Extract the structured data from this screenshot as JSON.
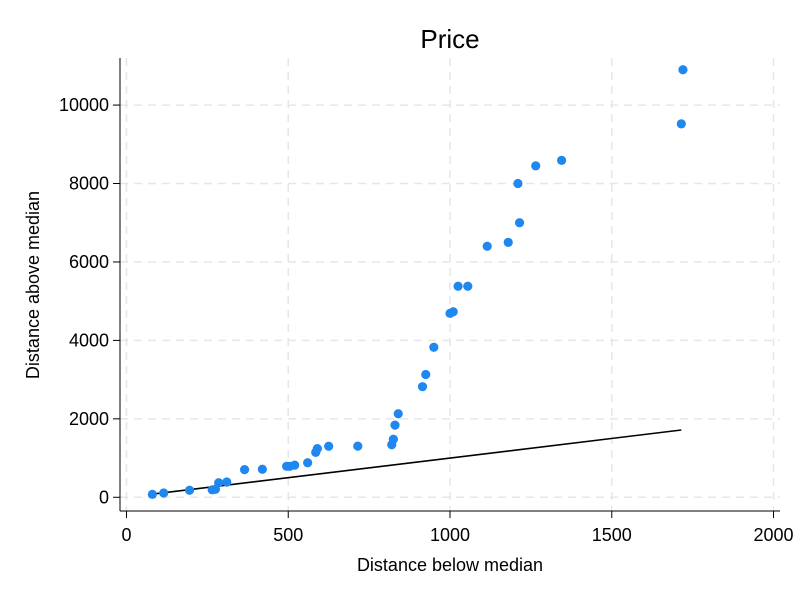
{
  "chart_data": {
    "type": "scatter",
    "title": "Price",
    "xlabel": "Distance below median",
    "ylabel": "Distance above median",
    "xlim": [
      -20,
      2020
    ],
    "ylim": [
      -350,
      11200
    ],
    "xticks": [
      0,
      500,
      1000,
      1500,
      2000
    ],
    "yticks": [
      0,
      2000,
      4000,
      6000,
      8000,
      10000
    ],
    "xtick_labels": [
      "0",
      "500",
      "1000",
      "1500",
      "2000"
    ],
    "ytick_labels": [
      "0",
      "2000",
      "4000",
      "6000",
      "8000",
      "10000"
    ],
    "grid": true,
    "point_color": "#1f87f0",
    "line_color": "#000000",
    "series": [
      {
        "type": "scatter",
        "x": [
          80,
          115,
          195,
          265,
          275,
          285,
          310,
          365,
          420,
          495,
          505,
          520,
          560,
          585,
          590,
          625,
          715,
          820,
          825,
          830,
          840,
          915,
          925,
          950,
          1000,
          1010,
          1025,
          1055,
          1115,
          1180,
          1210,
          1215,
          1265,
          1345,
          1715,
          1720
        ],
        "y": [
          75,
          110,
          180,
          190,
          205,
          370,
          390,
          705,
          715,
          790,
          790,
          820,
          880,
          1145,
          1240,
          1300,
          1305,
          1340,
          1480,
          1840,
          2130,
          2820,
          3130,
          3825,
          4690,
          4730,
          5380,
          5380,
          6400,
          6500,
          8000,
          7000,
          8450,
          8590,
          9520,
          10900
        ]
      },
      {
        "type": "line",
        "x": [
          75,
          1715
        ],
        "y": [
          75,
          1715
        ]
      }
    ]
  }
}
